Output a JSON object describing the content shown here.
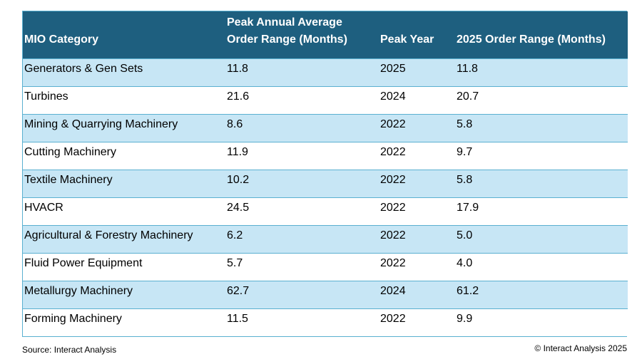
{
  "chart_data": {
    "type": "table",
    "columns": [
      "MIO Category",
      "Peak  Annual Average\nOrder Range (Months)",
      "Peak Year",
      "2025 Order Range (Months)"
    ],
    "rows": [
      [
        "Generators & Gen Sets",
        "11.8",
        "2025",
        "11.8"
      ],
      [
        "Turbines",
        "21.6",
        "2024",
        "20.7"
      ],
      [
        "Mining & Quarrying Machinery",
        "8.6",
        "2022",
        "5.8"
      ],
      [
        "Cutting Machinery",
        "11.9",
        "2022",
        "9.7"
      ],
      [
        "Textile Machinery",
        "10.2",
        "2022",
        "5.8"
      ],
      [
        "HVACR",
        "24.5",
        "2022",
        "17.9"
      ],
      [
        "Agricultural & Forestry Machinery",
        "6.2",
        "2022",
        "5.0"
      ],
      [
        "Fluid Power Equipment",
        "5.7",
        "2022",
        "4.0"
      ],
      [
        "Metallurgy Machinery",
        "62.7",
        "2024",
        "61.2"
      ],
      [
        "Forming Machinery",
        "11.5",
        "2022",
        "9.9"
      ]
    ]
  },
  "footer": {
    "source": "Source: Interact Analysis",
    "copyright": "© Interact Analysis 2025"
  },
  "colors": {
    "header_bg": "#1e5f7f",
    "row_shaded": "#c7e6f5",
    "border": "#5ab0d0"
  }
}
